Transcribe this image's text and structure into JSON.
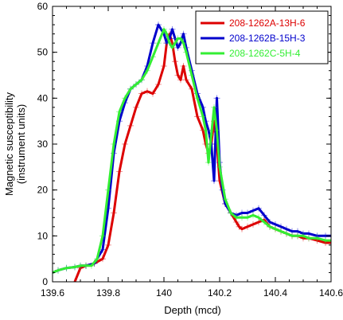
{
  "chart_data": {
    "type": "line",
    "xlabel": "Depth (mcd)",
    "ylabel_lines": [
      "Magnetic susceptibility",
      "(instrument units)"
    ],
    "xlim": [
      139.6,
      140.6
    ],
    "ylim": [
      0,
      60
    ],
    "xticks": [
      "139.6",
      "139.8",
      "140",
      "140.2",
      "140.4",
      "140.6"
    ],
    "yticks": [
      "0",
      "10",
      "20",
      "30",
      "40",
      "50",
      "60"
    ],
    "legend_position": "top-right",
    "series": [
      {
        "name": "208-1262A-13H-6",
        "color": "#dd0000",
        "points": [
          [
            139.68,
            0
          ],
          [
            139.7,
            3
          ],
          [
            139.72,
            3.5
          ],
          [
            139.75,
            4
          ],
          [
            139.78,
            5
          ],
          [
            139.8,
            8
          ],
          [
            139.82,
            15
          ],
          [
            139.84,
            24
          ],
          [
            139.86,
            30
          ],
          [
            139.88,
            34
          ],
          [
            139.9,
            38
          ],
          [
            139.92,
            41
          ],
          [
            139.94,
            41.5
          ],
          [
            139.96,
            41
          ],
          [
            139.98,
            43
          ],
          [
            140.0,
            47
          ],
          [
            140.01,
            52
          ],
          [
            140.02,
            54
          ],
          [
            140.03,
            52
          ],
          [
            140.04,
            48
          ],
          [
            140.05,
            45
          ],
          [
            140.06,
            44
          ],
          [
            140.07,
            47
          ],
          [
            140.08,
            44
          ],
          [
            140.1,
            42
          ],
          [
            140.12,
            36
          ],
          [
            140.14,
            33
          ],
          [
            140.15,
            30
          ],
          [
            140.16,
            28
          ],
          [
            140.17,
            30
          ],
          [
            140.18,
            35
          ],
          [
            140.19,
            30
          ],
          [
            140.2,
            22
          ],
          [
            140.22,
            17
          ],
          [
            140.24,
            15
          ],
          [
            140.26,
            13
          ],
          [
            140.27,
            12
          ],
          [
            140.28,
            11.5
          ],
          [
            140.3,
            12
          ],
          [
            140.32,
            12.5
          ],
          [
            140.34,
            13
          ],
          [
            140.36,
            13.5
          ],
          [
            140.38,
            12
          ],
          [
            140.4,
            11.5
          ],
          [
            140.42,
            11
          ],
          [
            140.44,
            10.5
          ],
          [
            140.46,
            10
          ],
          [
            140.48,
            10
          ],
          [
            140.5,
            9.5
          ],
          [
            140.52,
            9.5
          ],
          [
            140.55,
            9
          ],
          [
            140.58,
            8.5
          ],
          [
            140.6,
            8.5
          ]
        ]
      },
      {
        "name": "208-1262B-15H-3",
        "color": "#0000cc",
        "points": [
          [
            139.6,
            2
          ],
          [
            139.62,
            2.5
          ],
          [
            139.65,
            3
          ],
          [
            139.68,
            3.2
          ],
          [
            139.7,
            3.5
          ],
          [
            139.72,
            3.5
          ],
          [
            139.75,
            4
          ],
          [
            139.78,
            7
          ],
          [
            139.8,
            16
          ],
          [
            139.82,
            28
          ],
          [
            139.84,
            35
          ],
          [
            139.86,
            39
          ],
          [
            139.88,
            42
          ],
          [
            139.9,
            43
          ],
          [
            139.92,
            44
          ],
          [
            139.94,
            47
          ],
          [
            139.96,
            52
          ],
          [
            139.98,
            56
          ],
          [
            140.0,
            54
          ],
          [
            140.01,
            52
          ],
          [
            140.02,
            53
          ],
          [
            140.03,
            55
          ],
          [
            140.04,
            53
          ],
          [
            140.05,
            51
          ],
          [
            140.06,
            52
          ],
          [
            140.07,
            54
          ],
          [
            140.08,
            51
          ],
          [
            140.1,
            46
          ],
          [
            140.12,
            41
          ],
          [
            140.14,
            38
          ],
          [
            140.15,
            35
          ],
          [
            140.16,
            33
          ],
          [
            140.17,
            30
          ],
          [
            140.18,
            22
          ],
          [
            140.19,
            40
          ],
          [
            140.2,
            26
          ],
          [
            140.21,
            20
          ],
          [
            140.22,
            17
          ],
          [
            140.24,
            15
          ],
          [
            140.26,
            14.5
          ],
          [
            140.28,
            15
          ],
          [
            140.3,
            15
          ],
          [
            140.32,
            15.5
          ],
          [
            140.34,
            16
          ],
          [
            140.36,
            14.5
          ],
          [
            140.38,
            13
          ],
          [
            140.4,
            12.5
          ],
          [
            140.42,
            12
          ],
          [
            140.44,
            11.5
          ],
          [
            140.46,
            11
          ],
          [
            140.48,
            11
          ],
          [
            140.5,
            10.5
          ],
          [
            140.52,
            10.5
          ],
          [
            140.55,
            10
          ],
          [
            140.58,
            10
          ],
          [
            140.6,
            10
          ]
        ]
      },
      {
        "name": "208-1262C-5H-4",
        "color": "#33ee33",
        "points": [
          [
            139.6,
            2
          ],
          [
            139.62,
            2.5
          ],
          [
            139.65,
            3
          ],
          [
            139.68,
            3.2
          ],
          [
            139.7,
            3.5
          ],
          [
            139.72,
            3.5
          ],
          [
            139.74,
            3.5
          ],
          [
            139.76,
            5
          ],
          [
            139.78,
            10
          ],
          [
            139.8,
            20
          ],
          [
            139.82,
            30
          ],
          [
            139.84,
            37
          ],
          [
            139.86,
            40
          ],
          [
            139.88,
            42
          ],
          [
            139.9,
            43
          ],
          [
            139.92,
            44
          ],
          [
            139.94,
            46
          ],
          [
            139.96,
            49
          ],
          [
            139.98,
            52
          ],
          [
            140.0,
            55
          ],
          [
            140.01,
            54
          ],
          [
            140.02,
            52
          ],
          [
            140.03,
            51
          ],
          [
            140.04,
            52
          ],
          [
            140.05,
            53
          ],
          [
            140.06,
            53
          ],
          [
            140.07,
            52
          ],
          [
            140.08,
            50
          ],
          [
            140.1,
            45
          ],
          [
            140.12,
            40
          ],
          [
            140.14,
            36
          ],
          [
            140.15,
            33
          ],
          [
            140.16,
            26
          ],
          [
            140.17,
            32
          ],
          [
            140.18,
            38
          ],
          [
            140.19,
            33
          ],
          [
            140.2,
            25
          ],
          [
            140.22,
            18
          ],
          [
            140.24,
            15
          ],
          [
            140.26,
            14
          ],
          [
            140.28,
            14
          ],
          [
            140.3,
            14
          ],
          [
            140.32,
            14.5
          ],
          [
            140.34,
            14
          ],
          [
            140.36,
            13
          ],
          [
            140.38,
            12
          ],
          [
            140.4,
            11.5
          ],
          [
            140.42,
            11
          ],
          [
            140.44,
            10.5
          ],
          [
            140.46,
            10
          ],
          [
            140.48,
            10
          ],
          [
            140.5,
            10
          ],
          [
            140.52,
            9.5
          ],
          [
            140.55,
            9.5
          ],
          [
            140.58,
            9
          ],
          [
            140.6,
            9
          ]
        ]
      }
    ]
  }
}
